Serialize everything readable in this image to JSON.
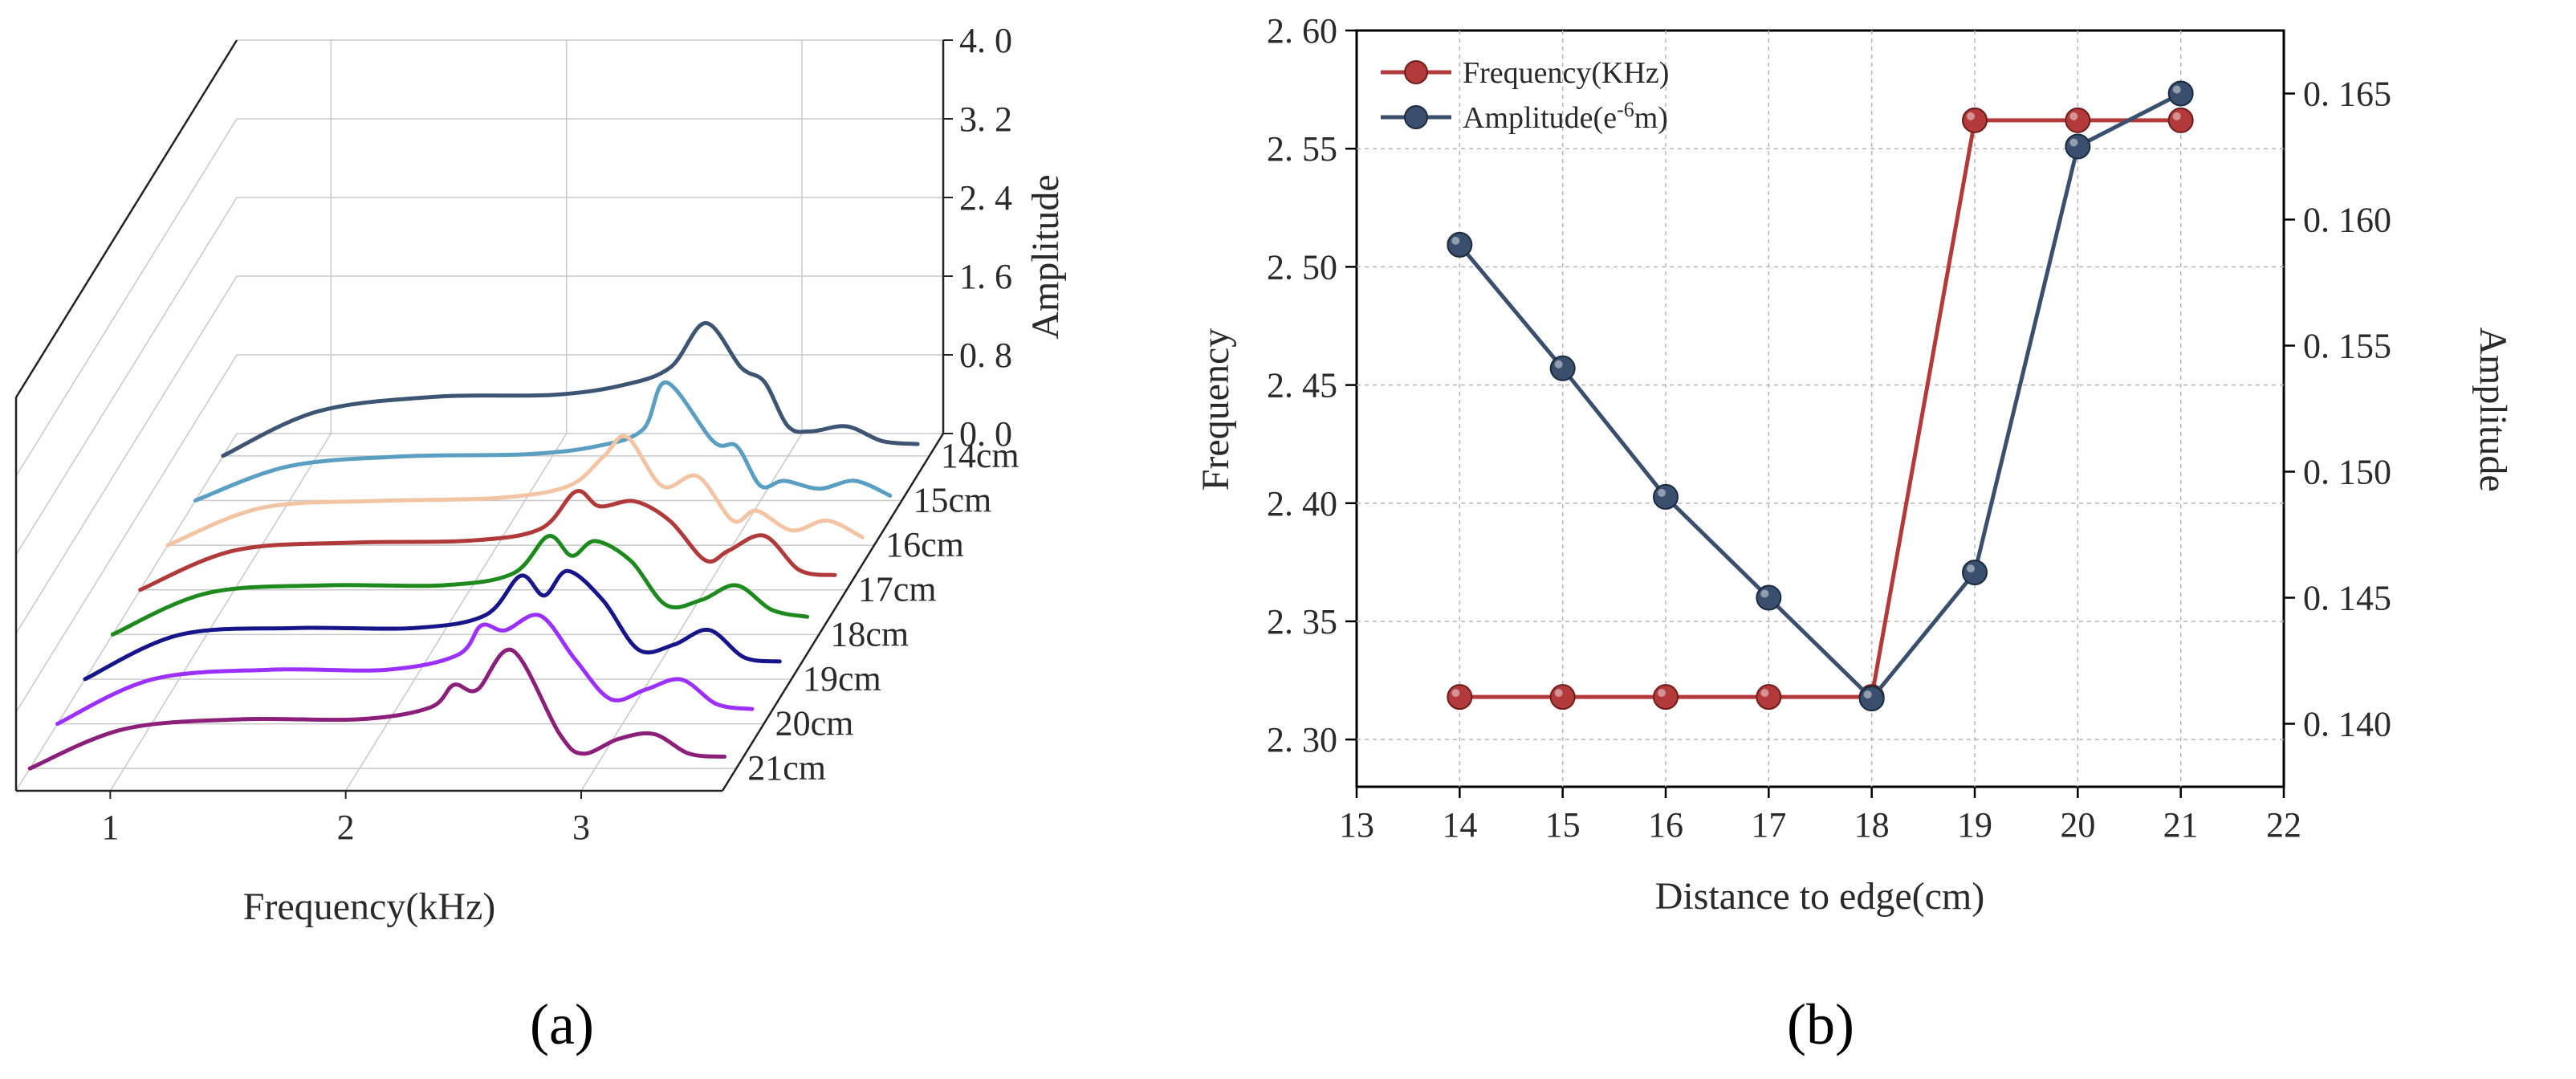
{
  "panel_labels": {
    "a": "(a)",
    "b": "(b)"
  },
  "chart_data": [
    {
      "panel": "a",
      "type": "line",
      "style": "3d-waterfall",
      "xlabel": "Frequency(kHz)",
      "zlabel": "Amplitude",
      "x_ticks": [
        "1",
        "2",
        "3"
      ],
      "z_ticks": [
        "0. 0",
        "0. 8",
        "1. 6",
        "2. 4",
        "3. 2",
        "4. 0"
      ],
      "xlim": [
        0.6,
        3.6
      ],
      "zlim": [
        0,
        4.0
      ],
      "grid": true,
      "series": [
        {
          "name": "14cm",
          "color": "#3d5473",
          "x": [
            0.6,
            1.0,
            1.5,
            2.0,
            2.3,
            2.5,
            2.65,
            2.8,
            2.9,
            3.0,
            3.1,
            3.25,
            3.4,
            3.55
          ],
          "y": [
            0.0,
            0.45,
            0.6,
            0.62,
            0.72,
            0.9,
            1.35,
            0.9,
            0.75,
            0.3,
            0.25,
            0.3,
            0.15,
            0.12
          ]
        },
        {
          "name": "15cm",
          "color": "#5a9ec1",
          "x": [
            0.6,
            1.0,
            1.5,
            2.0,
            2.3,
            2.5,
            2.6,
            2.8,
            2.9,
            3.0,
            3.1,
            3.25,
            3.4,
            3.55
          ],
          "y": [
            0.0,
            0.35,
            0.45,
            0.47,
            0.55,
            0.72,
            1.2,
            0.6,
            0.55,
            0.15,
            0.2,
            0.12,
            0.2,
            0.05
          ]
        },
        {
          "name": "16cm",
          "color": "#f3c4a3",
          "x": [
            0.6,
            1.0,
            1.5,
            2.0,
            2.3,
            2.45,
            2.55,
            2.7,
            2.85,
            3.0,
            3.1,
            3.25,
            3.4,
            3.55
          ],
          "y": [
            0.0,
            0.38,
            0.45,
            0.48,
            0.6,
            0.9,
            1.1,
            0.6,
            0.7,
            0.25,
            0.35,
            0.15,
            0.25,
            0.08
          ]
        },
        {
          "name": "17cm",
          "color": "#b03a3a",
          "x": [
            0.6,
            1.0,
            1.5,
            2.0,
            2.3,
            2.45,
            2.55,
            2.7,
            2.85,
            3.0,
            3.1,
            3.25,
            3.4,
            3.55
          ],
          "y": [
            0.0,
            0.4,
            0.48,
            0.5,
            0.62,
            1.0,
            0.85,
            0.9,
            0.7,
            0.3,
            0.4,
            0.55,
            0.2,
            0.15
          ]
        },
        {
          "name": "18cm",
          "color": "#1e8a1e",
          "x": [
            0.6,
            1.0,
            1.5,
            2.0,
            2.3,
            2.45,
            2.55,
            2.65,
            2.8,
            2.95,
            3.1,
            3.25,
            3.4,
            3.55
          ],
          "y": [
            0.0,
            0.42,
            0.5,
            0.5,
            0.62,
            1.0,
            0.8,
            0.95,
            0.75,
            0.3,
            0.35,
            0.5,
            0.25,
            0.18
          ]
        },
        {
          "name": "19cm",
          "color": "#16168a",
          "x": [
            0.6,
            1.0,
            1.5,
            2.0,
            2.3,
            2.45,
            2.55,
            2.65,
            2.8,
            2.95,
            3.1,
            3.25,
            3.4,
            3.55
          ],
          "y": [
            0.0,
            0.45,
            0.52,
            0.52,
            0.65,
            1.05,
            0.85,
            1.1,
            0.8,
            0.3,
            0.35,
            0.5,
            0.22,
            0.18
          ]
        },
        {
          "name": "20cm",
          "color": "#9b30ff",
          "x": [
            0.6,
            1.0,
            1.5,
            2.0,
            2.3,
            2.4,
            2.5,
            2.65,
            2.8,
            2.95,
            3.1,
            3.25,
            3.4,
            3.55
          ],
          "y": [
            0.0,
            0.45,
            0.55,
            0.55,
            0.7,
            1.0,
            0.95,
            1.1,
            0.65,
            0.25,
            0.35,
            0.45,
            0.2,
            0.15
          ]
        },
        {
          "name": "21cm",
          "color": "#8b1f7a",
          "x": [
            0.6,
            1.0,
            1.5,
            2.0,
            2.3,
            2.4,
            2.5,
            2.65,
            2.85,
            2.95,
            3.1,
            3.25,
            3.4,
            3.55
          ],
          "y": [
            0.0,
            0.4,
            0.5,
            0.5,
            0.62,
            0.85,
            0.8,
            1.2,
            0.35,
            0.15,
            0.3,
            0.35,
            0.15,
            0.12
          ]
        }
      ]
    },
    {
      "panel": "b",
      "type": "line",
      "xlabel": "Distance to edge(cm)",
      "ylabel": "Frequency",
      "y2label": "Amplitude",
      "xlim": [
        13,
        22
      ],
      "ylim": [
        2.28,
        2.6
      ],
      "y2lim": [
        0.1375,
        0.1675
      ],
      "x_ticks": [
        "13",
        "14",
        "15",
        "16",
        "17",
        "18",
        "19",
        "20",
        "21",
        "22"
      ],
      "y_ticks": [
        "2. 30",
        "2. 35",
        "2. 40",
        "2. 45",
        "2. 50",
        "2. 55",
        "2. 60"
      ],
      "y2_ticks": [
        "0. 140",
        "0. 145",
        "0. 150",
        "0. 155",
        "0. 160",
        "0. 165"
      ],
      "grid": true,
      "legend": "top-left",
      "series": [
        {
          "name": "Frequency(KHz)",
          "axis": "left",
          "color": "#b33a3a",
          "x": [
            14,
            15,
            16,
            17,
            18,
            19,
            20,
            21
          ],
          "y": [
            2.318,
            2.318,
            2.318,
            2.318,
            2.318,
            2.562,
            2.562,
            2.562
          ]
        },
        {
          "name_main": "Amplitude(e",
          "name_sup": "-6",
          "name_tail": "m)",
          "axis": "right",
          "color": "#3a4f6e",
          "x": [
            14,
            15,
            16,
            17,
            18,
            19,
            20,
            21
          ],
          "y": [
            0.159,
            0.1541,
            0.149,
            0.145,
            0.141,
            0.146,
            0.1629,
            0.165
          ]
        }
      ]
    }
  ]
}
